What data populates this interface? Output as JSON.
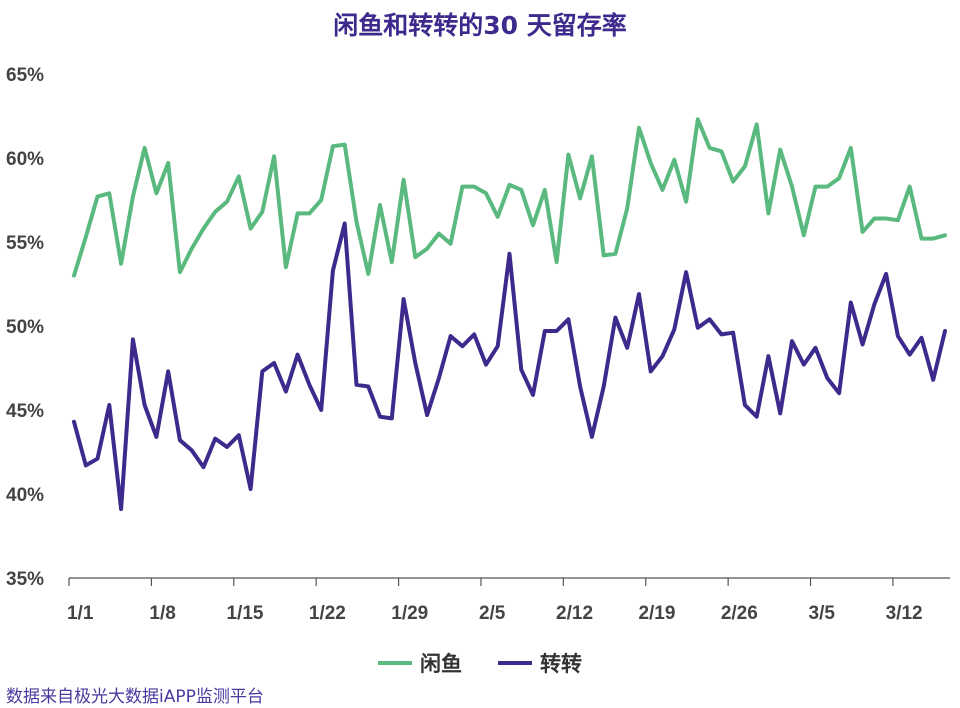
{
  "title": "闲鱼和转转的30 天留存率",
  "source": "数据来自极光大数据iAPP监测平台",
  "colors": {
    "xianyu": "#5ab97e",
    "zhuanzhuan": "#3d2a8c",
    "axis": "#555555",
    "title": "#3d2a8c"
  },
  "chart_data": {
    "type": "line",
    "title": "闲鱼和转转的30 天留存率",
    "xlabel": "",
    "ylabel": "",
    "ylim": [
      35,
      65
    ],
    "yticks": [
      "35%",
      "40%",
      "45%",
      "50%",
      "55%",
      "60%",
      "65%"
    ],
    "xticks": [
      "1/1",
      "1/8",
      "1/15",
      "1/22",
      "1/29",
      "2/5",
      "2/12",
      "2/19",
      "2/26",
      "3/5",
      "3/12"
    ],
    "x_start": "1/1",
    "legend": "bottom",
    "grid": false,
    "series": [
      {
        "name": "闲鱼",
        "values": [
          53.0,
          55.3,
          57.7,
          57.9,
          53.7,
          57.7,
          60.6,
          57.9,
          59.7,
          53.2,
          54.6,
          55.8,
          56.8,
          57.4,
          58.9,
          55.8,
          56.8,
          60.1,
          53.5,
          56.7,
          56.7,
          57.5,
          60.7,
          60.8,
          56.2,
          53.1,
          57.2,
          53.8,
          58.7,
          54.1,
          54.6,
          55.5,
          54.9,
          58.3,
          58.3,
          57.9,
          56.5,
          58.4,
          58.1,
          56.0,
          58.1,
          53.8,
          60.2,
          57.6,
          60.1,
          54.2,
          54.3,
          57.0,
          61.8,
          59.7,
          58.1,
          59.9,
          57.4,
          62.3,
          60.6,
          60.4,
          58.6,
          59.5,
          62.0,
          56.7,
          60.5,
          58.3,
          55.4,
          58.3,
          58.3,
          58.8,
          60.6,
          55.6,
          56.4,
          56.4,
          56.3,
          58.3,
          55.2,
          55.2,
          55.4
        ]
      },
      {
        "name": "转转",
        "values": [
          44.3,
          41.7,
          42.1,
          45.3,
          39.1,
          49.2,
          45.3,
          43.4,
          47.3,
          43.2,
          42.6,
          41.6,
          43.3,
          42.8,
          43.5,
          40.3,
          47.3,
          47.8,
          46.1,
          48.3,
          46.5,
          45.0,
          53.3,
          56.1,
          46.5,
          46.4,
          44.6,
          44.5,
          51.6,
          47.8,
          44.7,
          46.9,
          49.4,
          48.8,
          49.5,
          47.7,
          48.8,
          54.3,
          47.4,
          45.9,
          49.7,
          49.7,
          50.4,
          46.4,
          43.4,
          46.4,
          50.5,
          48.7,
          51.9,
          47.3,
          48.2,
          49.8,
          53.2,
          49.9,
          50.4,
          49.5,
          49.6,
          45.3,
          44.6,
          48.2,
          44.8,
          49.1,
          47.7,
          48.7,
          46.9,
          46.0,
          51.4,
          48.9,
          51.3,
          53.1,
          49.4,
          48.3,
          49.3,
          46.8,
          49.7
        ]
      }
    ]
  }
}
